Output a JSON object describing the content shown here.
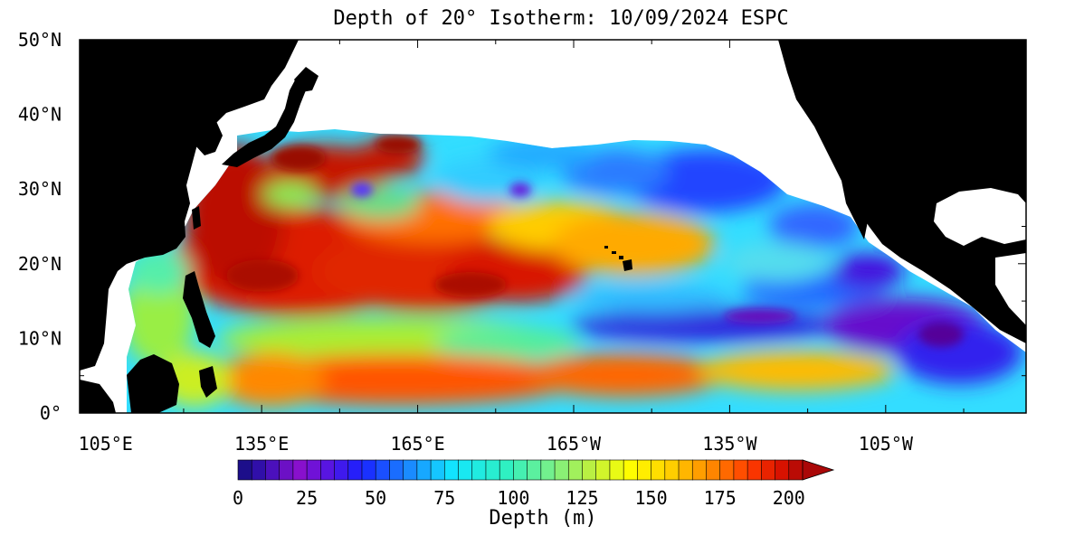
{
  "title": "Depth of 20° Isotherm: 10/09/2024 ESPC",
  "lat_labels": [
    "0°",
    "10°N",
    "20°N",
    "30°N",
    "40°N",
    "50°N"
  ],
  "lon_labels": [
    "105°E",
    "135°E",
    "165°E",
    "165°W",
    "135°W",
    "105°W"
  ],
  "colorbar": {
    "tick_labels": [
      "0",
      "25",
      "50",
      "75",
      "100",
      "125",
      "150",
      "175",
      "200"
    ],
    "label": "Depth (m)",
    "min": 0,
    "max": 205,
    "step": 5,
    "extend": "max"
  },
  "map": {
    "lat_range": [
      0,
      50
    ],
    "lon_range_east": [
      100,
      282
    ],
    "land_color": "#000000",
    "nodata_color": "#ffffff"
  }
}
